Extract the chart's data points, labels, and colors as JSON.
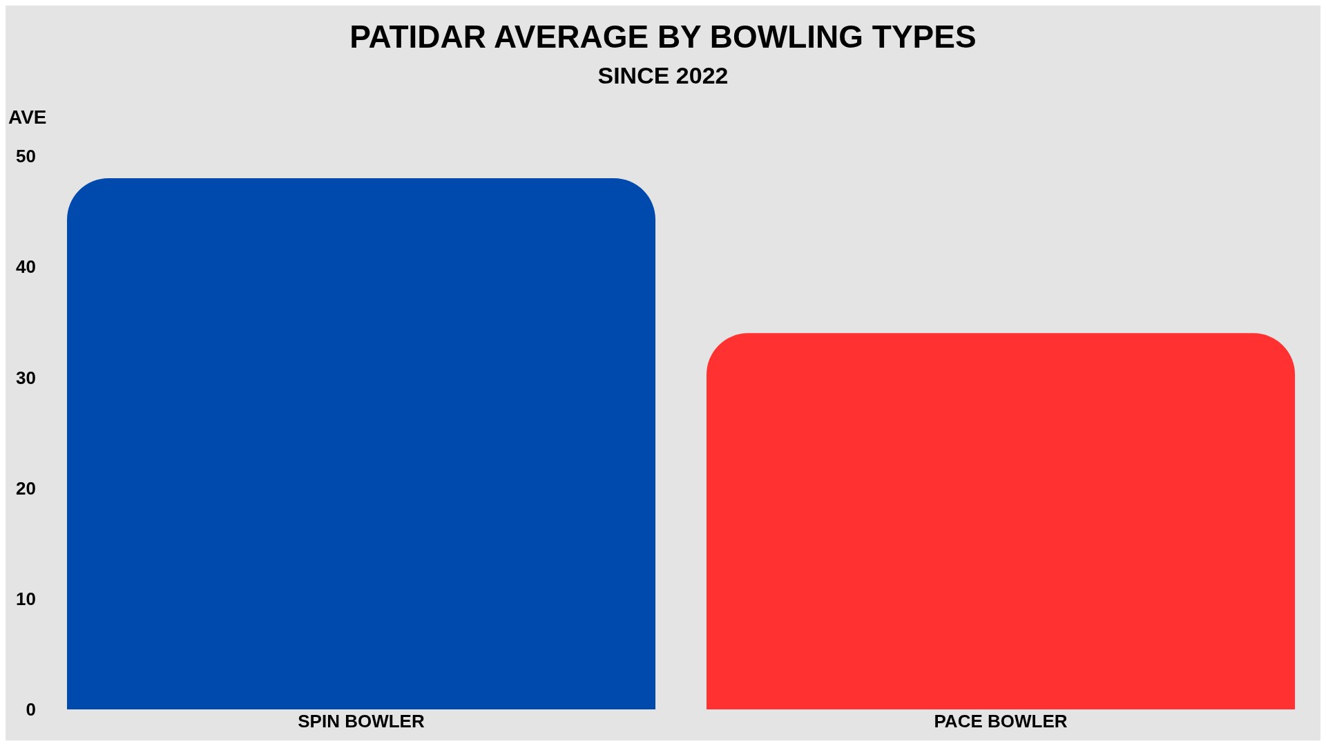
{
  "chart_data": {
    "type": "bar",
    "title": "PATIDAR AVERAGE BY BOWLING TYPES",
    "subtitle": "SINCE 2022",
    "ylabel": "AVE",
    "categories": [
      "SPIN BOWLER",
      "PACE BOWLER"
    ],
    "values": [
      48,
      34
    ],
    "colors": [
      "#004aad",
      "#ff3131"
    ],
    "ylim": [
      0,
      50
    ],
    "yticks": [
      0,
      10,
      20,
      30,
      40,
      50
    ],
    "grid": false,
    "legend": false
  }
}
